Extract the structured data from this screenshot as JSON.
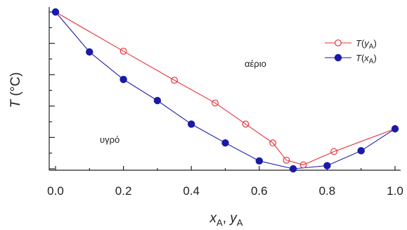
{
  "chart_data": {
    "type": "line",
    "title": "",
    "xlabel": {
      "main1": "x",
      "sub1": "A",
      "sep": ", ",
      "main2": "y",
      "sub2": "A"
    },
    "ylabel": "T (°C)",
    "xlim": [
      0,
      1
    ],
    "ylim": [
      0,
      1
    ],
    "x_ticks": [
      "0.0",
      "0.2",
      "0.4",
      "0.6",
      "0.8",
      "1.0"
    ],
    "y_ticks_labeled": false,
    "grid": false,
    "legend_position": "top-right",
    "region_labels": {
      "vapor": "αέριο",
      "liquid": "υγρό"
    },
    "series": [
      {
        "name": "T(yA)",
        "legend": {
          "italic": "T",
          "open": "(",
          "var": "y",
          "sub": "A",
          "close": ")"
        },
        "color": "#e8323c",
        "marker": "open-circle",
        "x": [
          0.0,
          0.2,
          0.35,
          0.47,
          0.56,
          0.64,
          0.68,
          0.73,
          0.82,
          1.0
        ],
        "y": [
          1.0,
          0.75,
          0.565,
          0.42,
          0.285,
          0.165,
          0.055,
          0.025,
          0.11,
          0.255
        ]
      },
      {
        "name": "T(xA)",
        "legend": {
          "italic": "T",
          "open": "(",
          "var": "x",
          "sub": "A",
          "close": ")"
        },
        "color": "#1a1aa8",
        "marker": "filled-circle",
        "x": [
          0.0,
          0.1,
          0.2,
          0.3,
          0.4,
          0.5,
          0.6,
          0.7,
          0.8,
          0.9,
          1.0
        ],
        "y": [
          1.0,
          0.745,
          0.57,
          0.435,
          0.285,
          0.165,
          0.05,
          0.0,
          0.02,
          0.115,
          0.255
        ]
      }
    ]
  }
}
